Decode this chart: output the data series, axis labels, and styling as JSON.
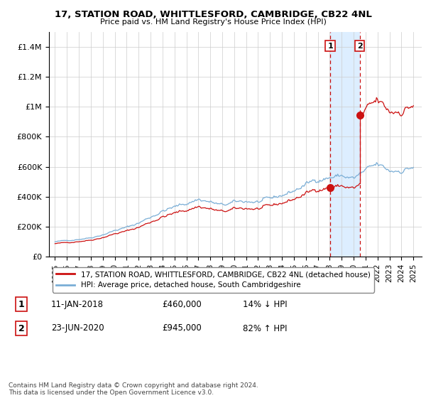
{
  "title": "17, STATION ROAD, WHITTLESFORD, CAMBRIDGE, CB22 4NL",
  "subtitle": "Price paid vs. HM Land Registry's House Price Index (HPI)",
  "footer": "Contains HM Land Registry data © Crown copyright and database right 2024.\nThis data is licensed under the Open Government Licence v3.0.",
  "legend_line1": "17, STATION ROAD, WHITTLESFORD, CAMBRIDGE, CB22 4NL (detached house)",
  "legend_line2": "HPI: Average price, detached house, South Cambridgeshire",
  "sale1_label": "1",
  "sale1_date": "11-JAN-2018",
  "sale1_price": "£460,000",
  "sale1_hpi": "14% ↓ HPI",
  "sale2_label": "2",
  "sale2_date": "23-JUN-2020",
  "sale2_price": "£945,000",
  "sale2_hpi": "82% ↑ HPI",
  "hpi_color": "#7aaed6",
  "price_color": "#cc1111",
  "sale_vline_color": "#cc1111",
  "highlight_color": "#ddeeff",
  "background_color": "#ffffff",
  "grid_color": "#cccccc",
  "ylim": [
    0,
    1500000
  ],
  "yticks": [
    0,
    200000,
    400000,
    600000,
    800000,
    1000000,
    1200000,
    1400000
  ],
  "ytick_labels": [
    "£0",
    "£200K",
    "£400K",
    "£600K",
    "£800K",
    "£1M",
    "£1.2M",
    "£1.4M"
  ],
  "sale1_x": 2018.04,
  "sale2_x": 2020.5,
  "sale1_y": 460000,
  "sale2_y": 945000,
  "xlim_left": 1994.5,
  "xlim_right": 2025.7
}
